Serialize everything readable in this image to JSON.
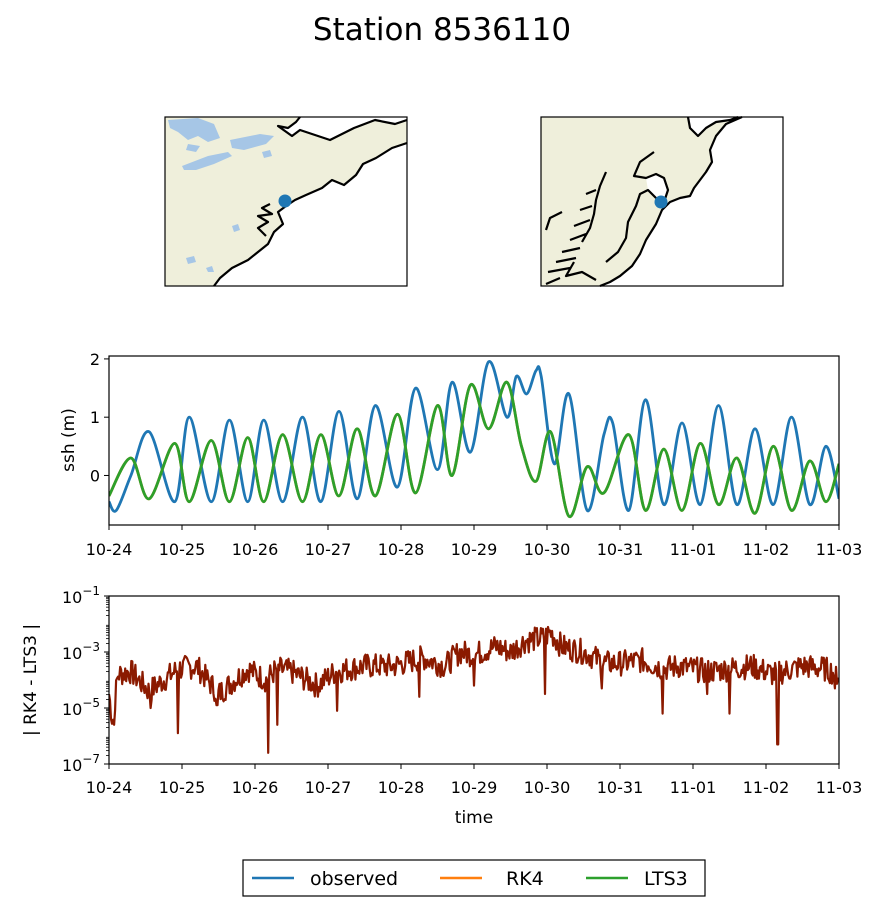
{
  "title": "Station 8536110",
  "maps": [
    {
      "name": "overview-map",
      "colors": {
        "land": "#efefdb",
        "water": "#ffffff",
        "lakes": "#a6c6e6",
        "coast": "#000000",
        "marker": "#1f77b4"
      }
    },
    {
      "name": "detail-map",
      "colors": {
        "land": "#efefdb",
        "water": "#ffffff",
        "coast": "#000000",
        "marker": "#1f77b4"
      }
    }
  ],
  "legend": {
    "entries": [
      {
        "label": "observed",
        "color": "#1f77b4"
      },
      {
        "label": "RK4",
        "color": "#ff7f0e"
      },
      {
        "label": "LTS3",
        "color": "#2ca02c"
      }
    ],
    "placement": "bottom-center"
  },
  "chart_data": [
    {
      "type": "line",
      "title": "",
      "xlabel": "",
      "ylabel": "ssh (m)",
      "x_ticks": [
        "10-24",
        "10-25",
        "10-26",
        "10-27",
        "10-28",
        "10-29",
        "10-30",
        "10-31",
        "11-01",
        "11-02",
        "11-03"
      ],
      "y_ticks": [
        "0",
        "1",
        "2"
      ],
      "xlim": [
        0,
        10
      ],
      "ylim": [
        -0.85,
        2.05
      ],
      "grid": false,
      "series": [
        {
          "name": "observed",
          "color": "#1f77b4",
          "x": [
            0.0,
            0.1,
            0.3,
            0.55,
            0.9,
            1.1,
            1.4,
            1.65,
            1.9,
            2.12,
            2.38,
            2.65,
            2.9,
            3.15,
            3.4,
            3.65,
            3.95,
            4.2,
            4.5,
            4.7,
            4.95,
            5.2,
            5.45,
            5.58,
            5.72,
            5.85,
            5.92,
            6.1,
            6.3,
            6.55,
            6.78,
            6.9,
            7.12,
            7.35,
            7.6,
            7.85,
            8.1,
            8.35,
            8.6,
            8.85,
            9.1,
            9.35,
            9.6,
            9.82,
            10.0
          ],
          "y": [
            -0.45,
            -0.6,
            0.0,
            0.75,
            -0.45,
            1.0,
            -0.45,
            0.95,
            -0.45,
            0.95,
            -0.45,
            1.0,
            -0.45,
            1.1,
            -0.4,
            1.2,
            -0.2,
            1.5,
            0.1,
            1.6,
            0.4,
            1.95,
            1.0,
            1.7,
            1.4,
            1.8,
            1.7,
            0.2,
            1.4,
            -0.6,
            0.7,
            0.9,
            -0.6,
            1.3,
            -0.5,
            0.9,
            -0.5,
            1.2,
            -0.5,
            0.8,
            -0.5,
            1.0,
            -0.5,
            0.5,
            -0.4
          ]
        },
        {
          "name": "RK4",
          "color": "#ff7f0e",
          "x": [
            0.0,
            0.3,
            0.55,
            0.9,
            1.1,
            1.4,
            1.65,
            1.9,
            2.12,
            2.38,
            2.65,
            2.9,
            3.15,
            3.4,
            3.65,
            3.95,
            4.2,
            4.5,
            4.7,
            4.95,
            5.2,
            5.45,
            5.65,
            5.85,
            6.05,
            6.3,
            6.55,
            6.78,
            7.12,
            7.35,
            7.6,
            7.85,
            8.1,
            8.35,
            8.6,
            8.85,
            9.1,
            9.35,
            9.6,
            9.82,
            10.0
          ],
          "y": [
            -0.35,
            0.3,
            -0.4,
            0.55,
            -0.45,
            0.6,
            -0.45,
            0.65,
            -0.45,
            0.7,
            -0.45,
            0.7,
            -0.35,
            0.8,
            -0.35,
            1.05,
            -0.3,
            1.2,
            0.0,
            1.55,
            0.8,
            1.6,
            0.5,
            -0.1,
            0.75,
            -0.7,
            0.15,
            -0.3,
            0.7,
            -0.6,
            0.45,
            -0.6,
            0.55,
            -0.5,
            0.3,
            -0.65,
            0.5,
            -0.6,
            0.25,
            -0.45,
            0.2
          ]
        },
        {
          "name": "LTS3",
          "color": "#2ca02c",
          "x": [
            0.0,
            0.3,
            0.55,
            0.9,
            1.1,
            1.4,
            1.65,
            1.9,
            2.12,
            2.38,
            2.65,
            2.9,
            3.15,
            3.4,
            3.65,
            3.95,
            4.2,
            4.5,
            4.7,
            4.95,
            5.2,
            5.45,
            5.65,
            5.85,
            6.05,
            6.3,
            6.55,
            6.78,
            7.12,
            7.35,
            7.6,
            7.85,
            8.1,
            8.35,
            8.6,
            8.85,
            9.1,
            9.35,
            9.6,
            9.82,
            10.0
          ],
          "y": [
            -0.35,
            0.3,
            -0.4,
            0.55,
            -0.45,
            0.6,
            -0.45,
            0.65,
            -0.45,
            0.7,
            -0.45,
            0.7,
            -0.35,
            0.8,
            -0.35,
            1.05,
            -0.3,
            1.2,
            0.0,
            1.55,
            0.8,
            1.6,
            0.5,
            -0.1,
            0.75,
            -0.7,
            0.15,
            -0.3,
            0.7,
            -0.6,
            0.45,
            -0.6,
            0.55,
            -0.5,
            0.3,
            -0.65,
            0.5,
            -0.6,
            0.25,
            -0.45,
            0.2
          ]
        }
      ]
    },
    {
      "type": "line",
      "title": "",
      "xlabel": "time",
      "ylabel": "| RK4 - LTS3 |",
      "x_ticks": [
        "10-24",
        "10-25",
        "10-26",
        "10-27",
        "10-28",
        "10-29",
        "10-30",
        "10-31",
        "11-01",
        "11-02",
        "11-03"
      ],
      "y_ticks": [
        {
          "base": "10",
          "exp": "−1"
        },
        {
          "base": "10",
          "exp": "−3"
        },
        {
          "base": "10",
          "exp": "−5"
        },
        {
          "base": "10",
          "exp": "−7"
        }
      ],
      "y_scale": "log",
      "xlim": [
        0,
        10
      ],
      "ylim_exp": [
        -7,
        -1
      ],
      "grid": false,
      "series": [
        {
          "name": "| RK4 - LTS3 |",
          "color": "#8b1a00",
          "x": [
            0.0,
            0.05,
            0.12,
            0.3,
            0.55,
            0.95,
            1.2,
            1.5,
            1.9,
            2.15,
            2.3,
            2.5,
            2.85,
            3.1,
            3.3,
            3.5,
            3.9,
            4.3,
            4.6,
            4.8,
            5.0,
            5.3,
            5.5,
            5.7,
            5.95,
            6.05,
            6.2,
            6.5,
            6.8,
            7.0,
            7.3,
            7.6,
            7.8,
            8.2,
            8.5,
            8.8,
            9.1,
            9.5,
            9.8,
            10.0
          ],
          "y_exp": [
            -4.5,
            -5.5,
            -3.8,
            -3.7,
            -4.4,
            -3.6,
            -3.5,
            -4.5,
            -3.6,
            -4.0,
            -3.6,
            -3.7,
            -4.2,
            -3.7,
            -3.6,
            -3.5,
            -3.5,
            -3.2,
            -3.5,
            -3.0,
            -3.1,
            -2.8,
            -3.0,
            -2.6,
            -2.5,
            -2.3,
            -2.8,
            -3.0,
            -3.4,
            -3.4,
            -3.3,
            -3.6,
            -3.5,
            -3.7,
            -3.6,
            -3.5,
            -3.8,
            -3.5,
            -3.6,
            -3.8
          ]
        }
      ]
    }
  ]
}
